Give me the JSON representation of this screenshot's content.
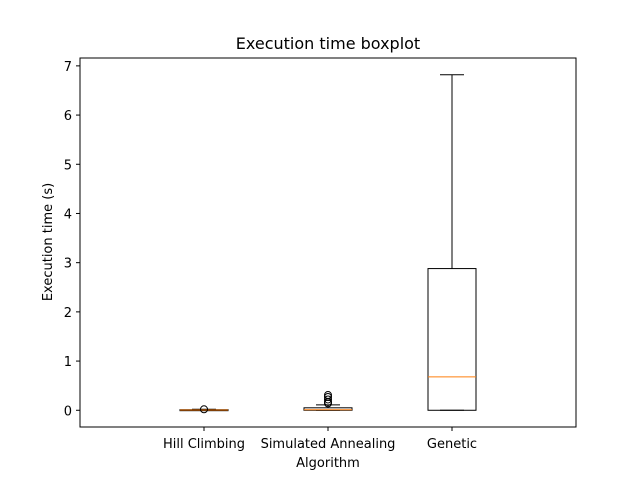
{
  "chart_data": {
    "type": "boxplot",
    "title": "Execution time boxplot",
    "xlabel": "Algorithm",
    "ylabel": "Execution time (s)",
    "categories": [
      "Hill Climbing",
      "Simulated Annealing",
      "Genetic"
    ],
    "yticks": [
      "0",
      "1",
      "2",
      "3",
      "4",
      "5",
      "6",
      "7"
    ],
    "ylim": [
      -0.34,
      7.16
    ],
    "grid": false,
    "boxes": [
      {
        "label": "Hill Climbing",
        "whisker_low": 0.0,
        "q1": 0.0,
        "median": 0.005,
        "q3": 0.012,
        "whisker_high": 0.02,
        "outliers": [
          0.02
        ]
      },
      {
        "label": "Simulated Annealing",
        "whisker_low": 0.0,
        "q1": 0.0,
        "median": 0.01,
        "q3": 0.05,
        "whisker_high": 0.11,
        "outliers": [
          0.14,
          0.17,
          0.22,
          0.27,
          0.31
        ]
      },
      {
        "label": "Genetic",
        "whisker_low": 0.0,
        "q1": 0.0,
        "median": 0.68,
        "q3": 2.88,
        "whisker_high": 6.82,
        "outliers": []
      }
    ],
    "colors": {
      "box": "#000000",
      "median": "#ff7f0e"
    }
  }
}
